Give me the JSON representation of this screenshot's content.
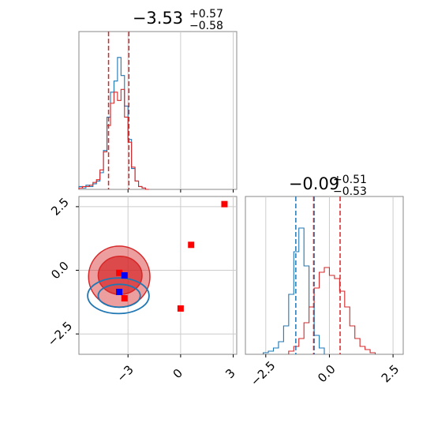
{
  "chart_data": [
    {
      "type": "histogram",
      "panel": "param-1-marginal",
      "title": {
        "value": "−3.53",
        "plus": "+0.57",
        "minus": "−0.58"
      },
      "xlim": [
        -5.8,
        3.2
      ],
      "grid": true,
      "colors": {
        "blue": "#1f77b4",
        "red": "#d62728"
      },
      "quantile_lines": [
        -4.11,
        -2.95
      ],
      "series": [
        {
          "color": "blue",
          "bin_edges": [
            -5.8,
            -5.6,
            -5.4,
            -5.2,
            -5.0,
            -4.8,
            -4.6,
            -4.4,
            -4.2,
            -4.0,
            -3.8,
            -3.6,
            -3.4,
            -3.2,
            -3.0,
            -2.8,
            -2.6,
            -2.4,
            -2.2,
            -2.0,
            -1.8
          ],
          "counts": [
            2,
            1,
            3,
            2,
            4,
            6,
            12,
            28,
            52,
            70,
            78,
            95,
            82,
            60,
            36,
            15,
            6,
            2,
            1,
            0
          ]
        },
        {
          "color": "red",
          "bin_edges": [
            -5.8,
            -5.6,
            -5.4,
            -5.2,
            -5.0,
            -4.8,
            -4.6,
            -4.4,
            -4.2,
            -4.0,
            -3.8,
            -3.6,
            -3.4,
            -3.2,
            -3.0,
            -2.8,
            -2.6,
            -2.4,
            -2.2,
            -2.0,
            -1.8
          ],
          "counts": [
            1,
            2,
            2,
            3,
            5,
            7,
            14,
            27,
            46,
            62,
            70,
            64,
            72,
            52,
            34,
            16,
            6,
            2,
            1,
            0
          ]
        }
      ]
    },
    {
      "type": "histogram",
      "panel": "param-2-marginal",
      "title": {
        "value": "−0.09",
        "plus": "+0.51",
        "minus": "−0.53"
      },
      "xlim": [
        -3.3,
        2.9
      ],
      "grid": true,
      "quantile_lines": [
        {
          "color": "blue",
          "x": [
            -1.32,
            -0.6
          ]
        },
        {
          "color": "red",
          "x": [
            -0.62,
            0.42
          ]
        }
      ],
      "series": [
        {
          "color": "blue",
          "bin_edges": [
            -2.6,
            -2.4,
            -2.2,
            -2.0,
            -1.8,
            -1.6,
            -1.4,
            -1.2,
            -1.0,
            -0.8,
            -0.6,
            -0.4,
            -0.2
          ],
          "counts": [
            1,
            2,
            4,
            8,
            18,
            38,
            65,
            80,
            56,
            30,
            12,
            4
          ]
        },
        {
          "color": "red",
          "bin_edges": [
            -1.6,
            -1.4,
            -1.2,
            -1.0,
            -0.8,
            -0.6,
            -0.4,
            -0.2,
            0.0,
            0.2,
            0.4,
            0.6,
            0.8,
            1.0,
            1.2,
            1.4,
            1.6,
            1.8
          ],
          "counts": [
            2,
            5,
            10,
            20,
            30,
            42,
            52,
            55,
            50,
            48,
            40,
            30,
            18,
            10,
            5,
            3,
            1
          ]
        }
      ]
    },
    {
      "type": "scatter",
      "panel": "joint-2d",
      "xlim": [
        -5.8,
        3.2
      ],
      "ylim": [
        -3.3,
        2.9
      ],
      "x_ticks": [
        "−3",
        "0",
        "3"
      ],
      "x_tick_values": [
        -3,
        0,
        3
      ],
      "y_ticks": [
        "2.5",
        "0.0",
        "−2.5"
      ],
      "y_tick_values": [
        2.5,
        0.0,
        -2.5
      ],
      "hist_x_tick_values": [
        -3,
        0,
        3
      ],
      "hist2_x_ticks": [
        "−2.5",
        "0.0",
        "2.5"
      ],
      "hist2_x_tick_values": [
        -2.5,
        0.0,
        2.5
      ],
      "grid": true,
      "red_contours": [
        {
          "cx": -3.5,
          "cy": -0.25,
          "rx": 1.75,
          "ry": 1.2,
          "fill_opacity": 0.45
        },
        {
          "cx": -3.45,
          "cy": -0.2,
          "rx": 1.25,
          "ry": 0.75,
          "fill_opacity": 0.7
        }
      ],
      "blue_contours": [
        {
          "cx": -3.55,
          "cy": -1.0,
          "rx": 1.75,
          "ry": 0.7
        },
        {
          "cx": -3.5,
          "cy": -1.0,
          "rx": 1.2,
          "ry": 0.45
        }
      ],
      "red_markers": [
        {
          "x": 2.5,
          "y": 2.6
        },
        {
          "x": 0.6,
          "y": 1.0
        },
        {
          "x": 0.0,
          "y": -1.5
        },
        {
          "x": -3.2,
          "y": -1.1
        },
        {
          "x": -3.5,
          "y": -0.1
        }
      ],
      "blue_markers": [
        {
          "x": -3.5,
          "y": -0.85
        },
        {
          "x": -3.2,
          "y": -0.2
        }
      ]
    }
  ]
}
